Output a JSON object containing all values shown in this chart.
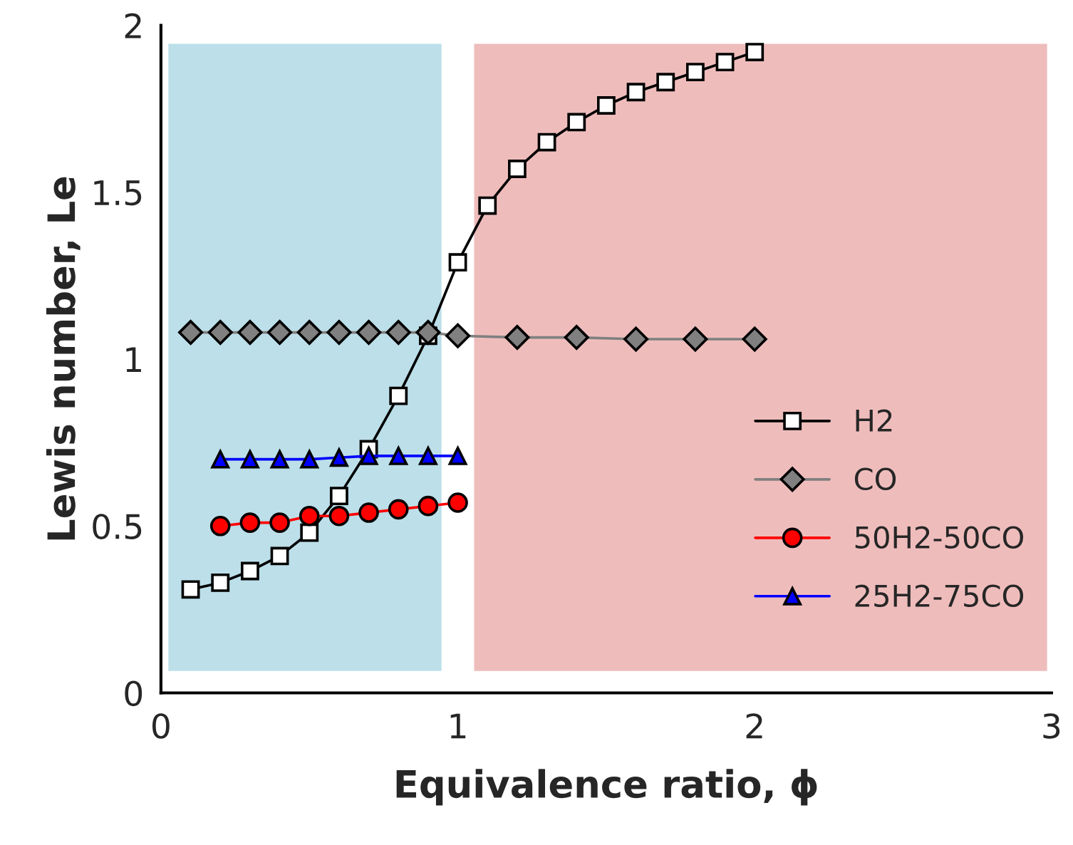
{
  "chart_data": {
    "type": "line",
    "xlabel": "Equivalence ratio, ϕ",
    "ylabel": "Lewis number, Le",
    "xlim": [
      0,
      3
    ],
    "xticks": [
      0,
      1,
      2,
      3
    ],
    "ylim": [
      0,
      2
    ],
    "yticks": [
      0,
      0.5,
      1,
      1.5,
      2
    ],
    "grid": false,
    "legend": "bottom right",
    "series": [
      {
        "name": "H2",
        "color": "#000000",
        "marker": "square",
        "x": [
          0.1,
          0.2,
          0.3,
          0.4,
          0.5,
          0.6,
          0.7,
          0.8,
          0.9,
          1.0,
          1.1,
          1.2,
          1.3,
          1.4,
          1.5,
          1.6,
          1.7,
          1.8,
          1.9,
          2.0
        ],
        "values": [
          0.31,
          0.33,
          0.365,
          0.41,
          0.48,
          0.59,
          0.73,
          0.89,
          1.07,
          1.29,
          1.46,
          1.57,
          1.65,
          1.71,
          1.76,
          1.8,
          1.83,
          1.86,
          1.89,
          1.92
        ]
      },
      {
        "name": "CO",
        "color": "#808080",
        "marker": "diamond",
        "x": [
          0.1,
          0.2,
          0.3,
          0.4,
          0.5,
          0.6,
          0.7,
          0.8,
          0.9,
          1.0,
          1.2,
          1.4,
          1.6,
          1.8,
          2.0
        ],
        "values": [
          1.08,
          1.08,
          1.08,
          1.08,
          1.08,
          1.08,
          1.08,
          1.08,
          1.08,
          1.07,
          1.065,
          1.065,
          1.06,
          1.06,
          1.06
        ]
      },
      {
        "name": "50H2-50CO",
        "color": "#ff0000",
        "marker": "circle",
        "x": [
          0.2,
          0.3,
          0.4,
          0.5,
          0.6,
          0.7,
          0.8,
          0.9,
          1.0
        ],
        "values": [
          0.5,
          0.51,
          0.51,
          0.53,
          0.53,
          0.54,
          0.55,
          0.56,
          0.57
        ]
      },
      {
        "name": "25H2-75CO",
        "color": "#0000ff",
        "marker": "triangle",
        "x": [
          0.2,
          0.3,
          0.4,
          0.5,
          0.6,
          0.7,
          0.8,
          0.9,
          1.0
        ],
        "values": [
          0.7,
          0.7,
          0.7,
          0.7,
          0.705,
          0.71,
          0.71,
          0.71,
          0.71
        ]
      }
    ],
    "bands": [
      {
        "axis": "x",
        "from": 0.03,
        "to": 0.94,
        "color": "#bcdfe9"
      },
      {
        "axis": "x",
        "from": 1.06,
        "to": 2.98,
        "color": "#efbcbc"
      }
    ]
  }
}
